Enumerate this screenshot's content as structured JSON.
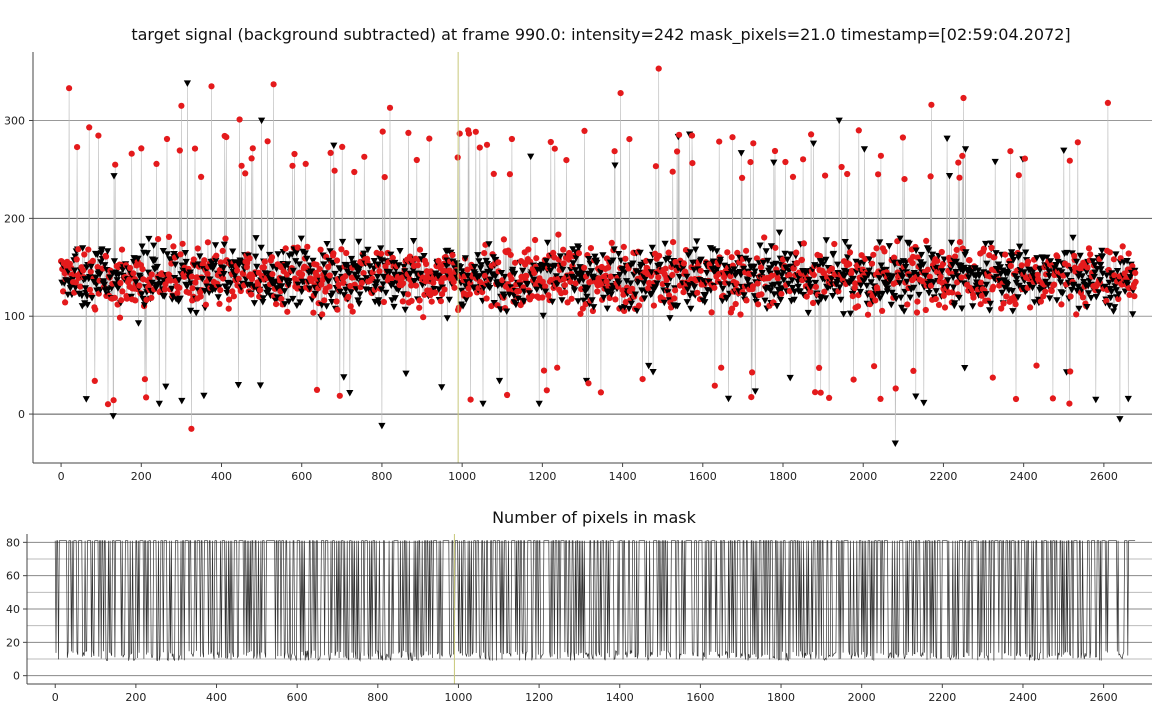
{
  "chart_data": [
    {
      "type": "scatter",
      "title": "target signal (background subtracted) at frame 990.0: intensity=242 mask_pixels=21.0 timestamp=[02:59:04.2072]",
      "xlim": [
        -70,
        2720
      ],
      "ylim": [
        -50,
        370
      ],
      "x_ticks": [
        0,
        200,
        400,
        600,
        800,
        1000,
        1200,
        1400,
        1600,
        1800,
        2000,
        2200,
        2400,
        2600
      ],
      "y_ticks": [
        0,
        100,
        200,
        300
      ],
      "x_tick_labels": [
        "0",
        "200",
        "400",
        "600",
        "800",
        "1000",
        "1200",
        "1400",
        "1600",
        "1800",
        "2000",
        "2200",
        "2400",
        "2600"
      ],
      "y_tick_labels": [
        "0",
        "100",
        "200",
        "300"
      ],
      "grid": "horizontal lines at y ticks",
      "cursor_x": 990,
      "frame_count": 2680,
      "series": [
        {
          "marker": "circle",
          "color": "#e41a1c"
        },
        {
          "marker": "triangle-down",
          "color": "#000000"
        }
      ],
      "connector_color": "#bdbdbd",
      "value_range": [
        -30,
        353
      ],
      "bulk_range": [
        60,
        240
      ],
      "notable_points": [
        {
          "x": 20,
          "y": 333
        },
        {
          "x": 70,
          "y": 293
        },
        {
          "x": 300,
          "y": 315
        },
        {
          "x": 315,
          "y": 338
        },
        {
          "x": 375,
          "y": 335
        },
        {
          "x": 445,
          "y": 301
        },
        {
          "x": 500,
          "y": 300
        },
        {
          "x": 530,
          "y": 337
        },
        {
          "x": 820,
          "y": 313
        },
        {
          "x": 1015,
          "y": 290
        },
        {
          "x": 1395,
          "y": 328
        },
        {
          "x": 1490,
          "y": 353
        },
        {
          "x": 1940,
          "y": 300
        },
        {
          "x": 2170,
          "y": 316
        },
        {
          "x": 2250,
          "y": 323
        },
        {
          "x": 2610,
          "y": 318
        },
        {
          "x": 325,
          "y": -15
        },
        {
          "x": 800,
          "y": -12
        },
        {
          "x": 2080,
          "y": -30
        },
        {
          "x": 2640,
          "y": -5
        },
        {
          "x": 130,
          "y": -2
        }
      ]
    },
    {
      "type": "line",
      "title": "Number of pixels in mask",
      "xlim": [
        -70,
        2720
      ],
      "ylim": [
        -5,
        85
      ],
      "x_ticks": [
        0,
        200,
        400,
        600,
        800,
        1000,
        1200,
        1400,
        1600,
        1800,
        2000,
        2200,
        2400,
        2600
      ],
      "y_ticks": [
        0,
        20,
        40,
        60,
        80
      ],
      "x_tick_labels": [
        "0",
        "200",
        "400",
        "600",
        "800",
        "1000",
        "1200",
        "1400",
        "1600",
        "1800",
        "2000",
        "2200",
        "2400",
        "2600"
      ],
      "y_tick_labels": [
        "0",
        "20",
        "40",
        "60",
        "80"
      ],
      "grid": "horizontal lines every 10",
      "cursor_x": 990,
      "high_value": 81,
      "low_range": [
        9,
        15
      ],
      "frame_count": 2680,
      "line_color": "#333333"
    }
  ]
}
